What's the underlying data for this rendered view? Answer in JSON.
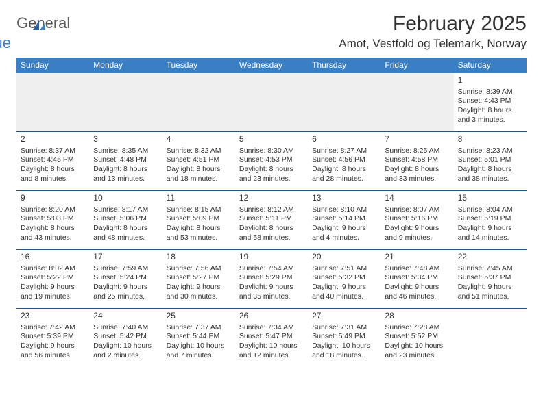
{
  "logo": {
    "general": "General",
    "blue": "Blue"
  },
  "title": "February 2025",
  "location": "Amot, Vestfold og Telemark, Norway",
  "header_color": "#3a7fc4",
  "header_text_color": "#ffffff",
  "border_color": "#26527e",
  "day_headers": [
    "Sunday",
    "Monday",
    "Tuesday",
    "Wednesday",
    "Thursday",
    "Friday",
    "Saturday"
  ],
  "weeks": [
    [
      {
        "n": "",
        "sr": "",
        "ss": "",
        "dl": ""
      },
      {
        "n": "",
        "sr": "",
        "ss": "",
        "dl": ""
      },
      {
        "n": "",
        "sr": "",
        "ss": "",
        "dl": ""
      },
      {
        "n": "",
        "sr": "",
        "ss": "",
        "dl": ""
      },
      {
        "n": "",
        "sr": "",
        "ss": "",
        "dl": ""
      },
      {
        "n": "",
        "sr": "",
        "ss": "",
        "dl": ""
      },
      {
        "n": "1",
        "sr": "Sunrise: 8:39 AM",
        "ss": "Sunset: 4:43 PM",
        "dl": "Daylight: 8 hours and 3 minutes."
      }
    ],
    [
      {
        "n": "2",
        "sr": "Sunrise: 8:37 AM",
        "ss": "Sunset: 4:45 PM",
        "dl": "Daylight: 8 hours and 8 minutes."
      },
      {
        "n": "3",
        "sr": "Sunrise: 8:35 AM",
        "ss": "Sunset: 4:48 PM",
        "dl": "Daylight: 8 hours and 13 minutes."
      },
      {
        "n": "4",
        "sr": "Sunrise: 8:32 AM",
        "ss": "Sunset: 4:51 PM",
        "dl": "Daylight: 8 hours and 18 minutes."
      },
      {
        "n": "5",
        "sr": "Sunrise: 8:30 AM",
        "ss": "Sunset: 4:53 PM",
        "dl": "Daylight: 8 hours and 23 minutes."
      },
      {
        "n": "6",
        "sr": "Sunrise: 8:27 AM",
        "ss": "Sunset: 4:56 PM",
        "dl": "Daylight: 8 hours and 28 minutes."
      },
      {
        "n": "7",
        "sr": "Sunrise: 8:25 AM",
        "ss": "Sunset: 4:58 PM",
        "dl": "Daylight: 8 hours and 33 minutes."
      },
      {
        "n": "8",
        "sr": "Sunrise: 8:23 AM",
        "ss": "Sunset: 5:01 PM",
        "dl": "Daylight: 8 hours and 38 minutes."
      }
    ],
    [
      {
        "n": "9",
        "sr": "Sunrise: 8:20 AM",
        "ss": "Sunset: 5:03 PM",
        "dl": "Daylight: 8 hours and 43 minutes."
      },
      {
        "n": "10",
        "sr": "Sunrise: 8:17 AM",
        "ss": "Sunset: 5:06 PM",
        "dl": "Daylight: 8 hours and 48 minutes."
      },
      {
        "n": "11",
        "sr": "Sunrise: 8:15 AM",
        "ss": "Sunset: 5:09 PM",
        "dl": "Daylight: 8 hours and 53 minutes."
      },
      {
        "n": "12",
        "sr": "Sunrise: 8:12 AM",
        "ss": "Sunset: 5:11 PM",
        "dl": "Daylight: 8 hours and 58 minutes."
      },
      {
        "n": "13",
        "sr": "Sunrise: 8:10 AM",
        "ss": "Sunset: 5:14 PM",
        "dl": "Daylight: 9 hours and 4 minutes."
      },
      {
        "n": "14",
        "sr": "Sunrise: 8:07 AM",
        "ss": "Sunset: 5:16 PM",
        "dl": "Daylight: 9 hours and 9 minutes."
      },
      {
        "n": "15",
        "sr": "Sunrise: 8:04 AM",
        "ss": "Sunset: 5:19 PM",
        "dl": "Daylight: 9 hours and 14 minutes."
      }
    ],
    [
      {
        "n": "16",
        "sr": "Sunrise: 8:02 AM",
        "ss": "Sunset: 5:22 PM",
        "dl": "Daylight: 9 hours and 19 minutes."
      },
      {
        "n": "17",
        "sr": "Sunrise: 7:59 AM",
        "ss": "Sunset: 5:24 PM",
        "dl": "Daylight: 9 hours and 25 minutes."
      },
      {
        "n": "18",
        "sr": "Sunrise: 7:56 AM",
        "ss": "Sunset: 5:27 PM",
        "dl": "Daylight: 9 hours and 30 minutes."
      },
      {
        "n": "19",
        "sr": "Sunrise: 7:54 AM",
        "ss": "Sunset: 5:29 PM",
        "dl": "Daylight: 9 hours and 35 minutes."
      },
      {
        "n": "20",
        "sr": "Sunrise: 7:51 AM",
        "ss": "Sunset: 5:32 PM",
        "dl": "Daylight: 9 hours and 40 minutes."
      },
      {
        "n": "21",
        "sr": "Sunrise: 7:48 AM",
        "ss": "Sunset: 5:34 PM",
        "dl": "Daylight: 9 hours and 46 minutes."
      },
      {
        "n": "22",
        "sr": "Sunrise: 7:45 AM",
        "ss": "Sunset: 5:37 PM",
        "dl": "Daylight: 9 hours and 51 minutes."
      }
    ],
    [
      {
        "n": "23",
        "sr": "Sunrise: 7:42 AM",
        "ss": "Sunset: 5:39 PM",
        "dl": "Daylight: 9 hours and 56 minutes."
      },
      {
        "n": "24",
        "sr": "Sunrise: 7:40 AM",
        "ss": "Sunset: 5:42 PM",
        "dl": "Daylight: 10 hours and 2 minutes."
      },
      {
        "n": "25",
        "sr": "Sunrise: 7:37 AM",
        "ss": "Sunset: 5:44 PM",
        "dl": "Daylight: 10 hours and 7 minutes."
      },
      {
        "n": "26",
        "sr": "Sunrise: 7:34 AM",
        "ss": "Sunset: 5:47 PM",
        "dl": "Daylight: 10 hours and 12 minutes."
      },
      {
        "n": "27",
        "sr": "Sunrise: 7:31 AM",
        "ss": "Sunset: 5:49 PM",
        "dl": "Daylight: 10 hours and 18 minutes."
      },
      {
        "n": "28",
        "sr": "Sunrise: 7:28 AM",
        "ss": "Sunset: 5:52 PM",
        "dl": "Daylight: 10 hours and 23 minutes."
      },
      {
        "n": "",
        "sr": "",
        "ss": "",
        "dl": ""
      }
    ]
  ]
}
